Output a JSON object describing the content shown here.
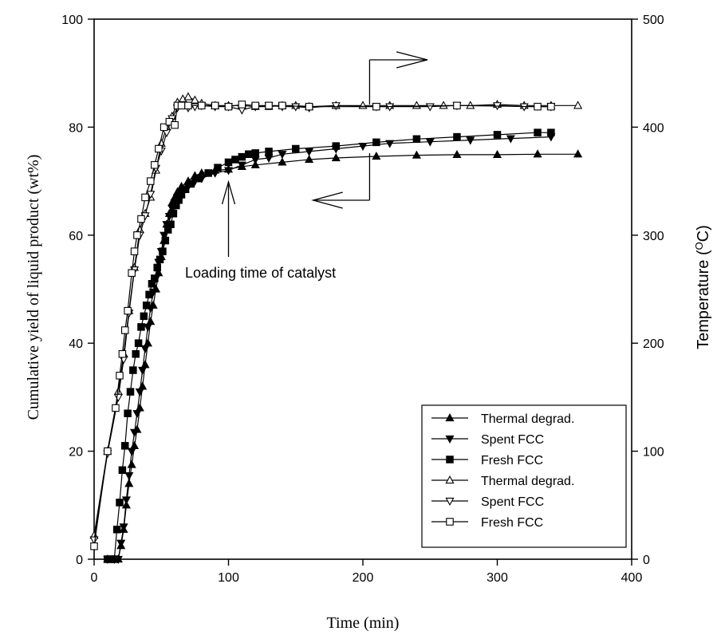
{
  "chart_data": {
    "type": "line",
    "xlabel": "Time (min)",
    "ylabel_left": "Cumulative yield of liquid product (wt%)",
    "ylabel_right": "Temperature (°C)",
    "ylabel_right_main": "Temperature (",
    "ylabel_right_sup": "O",
    "ylabel_right_unit": "C)",
    "xlim": [
      0,
      400
    ],
    "ylim_left": [
      0,
      100
    ],
    "ylim_right": [
      0,
      500
    ],
    "x_ticks": [
      "0",
      "100",
      "200",
      "300",
      "400"
    ],
    "y_left_ticks": [
      "0",
      "20",
      "40",
      "60",
      "80",
      "100"
    ],
    "y_right_ticks": [
      "0",
      "100",
      "200",
      "300",
      "400",
      "500"
    ],
    "grid": false,
    "legend_position": "bottom-right",
    "annotation": "Loading time of catalyst",
    "series": [
      {
        "name": "Thermal degrad.",
        "axis": "left",
        "marker": "triangle-up",
        "filled": true,
        "x": [
          10,
          15,
          18,
          20,
          22,
          24,
          26,
          28,
          30,
          32,
          34,
          36,
          38,
          40,
          42,
          44,
          46,
          48,
          50,
          52,
          54,
          56,
          58,
          60,
          62,
          65,
          70,
          75,
          80,
          90,
          100,
          110,
          120,
          140,
          160,
          180,
          210,
          240,
          270,
          300,
          330,
          360
        ],
        "y": [
          0,
          0,
          0,
          2.5,
          5.5,
          10,
          14,
          17.5,
          21,
          24,
          28,
          32,
          36,
          40,
          44,
          47,
          50,
          53,
          56,
          59,
          62,
          64,
          66,
          67,
          68,
          69,
          70,
          71,
          71.5,
          72,
          72.2,
          72.7,
          73,
          73.5,
          74,
          74.3,
          74.6,
          74.8,
          74.9,
          74.9,
          75,
          75
        ]
      },
      {
        "name": "Spent FCC",
        "axis": "left",
        "marker": "triangle-down",
        "filled": true,
        "x": [
          10,
          15,
          18,
          20,
          22,
          24,
          26,
          28,
          30,
          32,
          34,
          36,
          38,
          40,
          42,
          44,
          46,
          48,
          50,
          52,
          54,
          56,
          58,
          60,
          62,
          65,
          70,
          75,
          80,
          90,
          100,
          110,
          120,
          130,
          140,
          160,
          180,
          200,
          220,
          250,
          280,
          310,
          340
        ],
        "y": [
          0,
          0,
          0,
          3,
          6,
          11,
          15.5,
          20,
          23.5,
          27,
          31,
          35,
          39,
          43,
          46.5,
          49.5,
          52,
          55,
          57,
          60,
          62,
          63.5,
          65,
          66,
          67,
          68,
          69,
          70,
          70.5,
          71.5,
          72,
          73,
          74,
          74.3,
          75,
          75.5,
          76,
          76.5,
          77,
          77.3,
          77.6,
          77.9,
          78.2
        ]
      },
      {
        "name": "Fresh FCC",
        "axis": "left",
        "marker": "square",
        "filled": true,
        "x": [
          10,
          12,
          15,
          17,
          19,
          21,
          23,
          25,
          27,
          29,
          31,
          33,
          35,
          37,
          39,
          41,
          43,
          45,
          47,
          49,
          51,
          53,
          55,
          57,
          59,
          61,
          63,
          65,
          68,
          72,
          78,
          85,
          92,
          100,
          105,
          110,
          115,
          120,
          130,
          150,
          180,
          210,
          240,
          270,
          300,
          330,
          340
        ],
        "y": [
          0,
          0,
          0,
          5.5,
          10.5,
          16.5,
          21,
          27,
          31,
          35,
          38,
          40,
          43,
          45,
          47,
          49,
          51,
          52,
          54,
          55.5,
          57,
          59,
          61,
          62,
          64,
          65.5,
          66.5,
          67.5,
          68.5,
          69.5,
          70.5,
          71.5,
          72.5,
          73.5,
          74,
          74.5,
          75,
          75.2,
          75.5,
          76,
          76.5,
          77.2,
          77.8,
          78.2,
          78.6,
          79,
          79
        ]
      },
      {
        "name": "Thermal degrad.",
        "axis": "right",
        "marker": "triangle-up",
        "filled": false,
        "x": [
          0,
          10,
          18,
          22,
          26,
          30,
          34,
          38,
          42,
          46,
          50,
          54,
          58,
          62,
          66,
          70,
          75,
          80,
          90,
          100,
          110,
          120,
          130,
          140,
          150,
          160,
          180,
          200,
          220,
          240,
          260,
          280,
          300,
          320,
          340,
          360
        ],
        "y": [
          22,
          100,
          155,
          190,
          230,
          270,
          305,
          320,
          335,
          360,
          385,
          400,
          410,
          423,
          426,
          428,
          425,
          422,
          420,
          420,
          420,
          419,
          419,
          420,
          420,
          419,
          420,
          420,
          420,
          420,
          420,
          420,
          421,
          420,
          420,
          420
        ]
      },
      {
        "name": "Spent FCC",
        "axis": "right",
        "marker": "triangle-down",
        "filled": false,
        "x": [
          0,
          10,
          18,
          22,
          26,
          30,
          34,
          38,
          42,
          46,
          50,
          54,
          58,
          62,
          66,
          70,
          75,
          80,
          90,
          100,
          110,
          120,
          130,
          140,
          150,
          160,
          180,
          210,
          220,
          250,
          270,
          300,
          320,
          340
        ],
        "y": [
          18,
          98,
          150,
          185,
          228,
          268,
          300,
          318,
          338,
          362,
          378,
          395,
          408,
          418,
          421,
          418,
          419,
          420,
          419,
          419,
          416,
          419,
          420,
          419,
          419,
          418,
          420,
          419,
          419,
          419,
          420,
          420,
          419,
          419
        ]
      },
      {
        "name": "Fresh FCC",
        "axis": "right",
        "marker": "square",
        "filled": false,
        "x": [
          0,
          10,
          16,
          19,
          21,
          23,
          25,
          28,
          30,
          32,
          35,
          38,
          42,
          45,
          48,
          52,
          56,
          60,
          62,
          65,
          70,
          80,
          90,
          100,
          110,
          120,
          130,
          140,
          160,
          210,
          270,
          330,
          340
        ],
        "y": [
          12,
          100,
          140,
          170,
          190,
          212,
          230,
          265,
          285,
          300,
          315,
          335,
          350,
          365,
          380,
          400,
          405,
          402,
          420,
          420,
          420,
          420,
          420,
          419,
          421,
          420,
          420,
          420,
          419,
          419,
          420,
          419,
          419
        ]
      }
    ]
  }
}
